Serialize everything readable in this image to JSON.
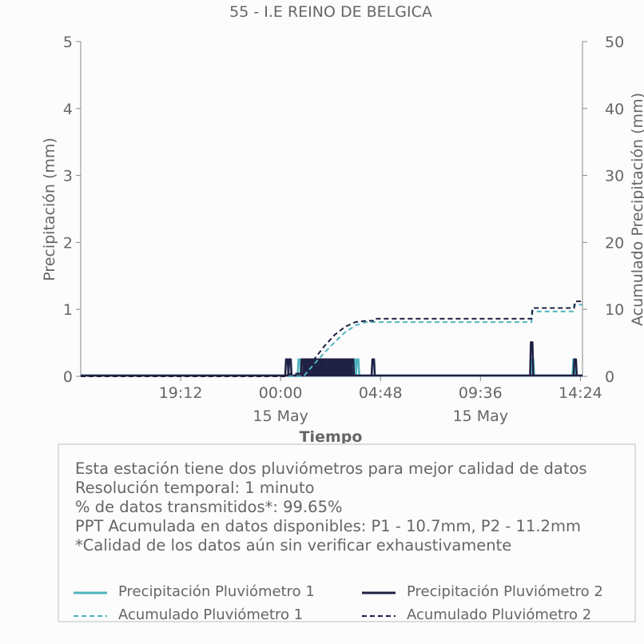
{
  "chart_data": {
    "type": "line",
    "title": "55 - I.E REINO DE BELGICA",
    "xlabel": "Tiempo",
    "ylabel_left": "Precipitación (mm)",
    "ylabel_right": "Acumulado Precipitación (mm)",
    "ylim_left": [
      0,
      5
    ],
    "ylim_right": [
      0,
      50
    ],
    "yticks_left": [
      "0",
      "1",
      "2",
      "3",
      "4",
      "5"
    ],
    "yticks_right": [
      "0",
      "10",
      "20",
      "30",
      "40",
      "50"
    ],
    "xlim_hours": [
      14.4,
      38.5
    ],
    "xticks": [
      {
        "hour": 19.2,
        "label": "19:12",
        "sub": ""
      },
      {
        "hour": 24.0,
        "label": "00:00",
        "sub": "15 May"
      },
      {
        "hour": 28.8,
        "label": "04:48",
        "sub": ""
      },
      {
        "hour": 33.6,
        "label": "09:36",
        "sub": "15 May"
      },
      {
        "hour": 38.4,
        "label": "14:24",
        "sub": ""
      }
    ],
    "grid": false,
    "series": [
      {
        "name": "Precipitación Pluviómetro 1",
        "color": "#4fb3bf",
        "style": "solid",
        "axis": "left",
        "events": [
          [
            24.45,
            0.254
          ],
          [
            24.9,
            0.254
          ],
          [
            25.2,
            0.254
          ],
          [
            25.5,
            0.254
          ],
          [
            25.8,
            0.254
          ],
          [
            26.1,
            0.254
          ],
          [
            26.4,
            0.254
          ],
          [
            26.7,
            0.254
          ],
          [
            27.0,
            0.254
          ],
          [
            27.3,
            0.254
          ],
          [
            27.55,
            0.254
          ],
          [
            27.7,
            0.254
          ],
          [
            28.45,
            0.254
          ],
          [
            36.1,
            0.254
          ],
          [
            38.1,
            0.254
          ]
        ]
      },
      {
        "name": "Precipitación Pluviómetro 2",
        "color": "#1f2044",
        "style": "solid",
        "axis": "left",
        "events": [
          [
            24.3,
            0.254
          ],
          [
            24.45,
            0.254
          ],
          [
            25.05,
            0.254
          ],
          [
            25.15,
            0.254
          ],
          [
            25.25,
            0.254
          ],
          [
            25.35,
            0.254
          ],
          [
            25.45,
            0.254
          ],
          [
            25.55,
            0.254
          ],
          [
            25.65,
            0.254
          ],
          [
            25.75,
            0.254
          ],
          [
            25.85,
            0.254
          ],
          [
            25.95,
            0.254
          ],
          [
            26.05,
            0.254
          ],
          [
            26.15,
            0.254
          ],
          [
            26.25,
            0.254
          ],
          [
            26.35,
            0.254
          ],
          [
            26.45,
            0.254
          ],
          [
            26.55,
            0.254
          ],
          [
            26.65,
            0.254
          ],
          [
            26.75,
            0.254
          ],
          [
            26.85,
            0.254
          ],
          [
            26.95,
            0.254
          ],
          [
            27.05,
            0.254
          ],
          [
            27.15,
            0.254
          ],
          [
            27.25,
            0.254
          ],
          [
            27.35,
            0.254
          ],
          [
            27.45,
            0.254
          ],
          [
            28.45,
            0.254
          ],
          [
            36.06,
            0.508
          ],
          [
            38.15,
            0.254
          ]
        ]
      },
      {
        "name": "Acumulado Pluviómetro 1",
        "color": "#4fb3bf",
        "style": "dashed",
        "axis": "right",
        "x": [
          14.4,
          25.1,
          25.6,
          26.1,
          26.6,
          27.1,
          27.6,
          28.1,
          28.5,
          36.05,
          36.1,
          38.05,
          38.1,
          38.5
        ],
        "values": [
          0,
          0,
          1.8,
          3.5,
          5.1,
          6.6,
          7.6,
          8.1,
          8.1,
          8.1,
          9.7,
          9.7,
          10.7,
          10.7
        ]
      },
      {
        "name": "Acumulado Pluviómetro 2",
        "color": "#1f2044",
        "style": "dashed",
        "axis": "right",
        "x": [
          14.4,
          24.3,
          24.35,
          25.1,
          25.6,
          26.1,
          26.6,
          27.1,
          27.6,
          28.1,
          28.45,
          28.5,
          36.05,
          36.1,
          38.1,
          38.15,
          38.5
        ],
        "values": [
          0,
          0,
          0.3,
          0.5,
          2.5,
          4.5,
          6.2,
          7.4,
          8.1,
          8.3,
          8.3,
          8.6,
          8.6,
          10.2,
          10.2,
          11.2,
          11.2
        ]
      }
    ],
    "legend": {
      "placement": "bottom",
      "entries": [
        {
          "label": "Precipitación Pluviómetro 1",
          "color": "#4fb3bf",
          "style": "solid"
        },
        {
          "label": "Precipitación Pluviómetro 2",
          "color": "#1f2044",
          "style": "solid"
        },
        {
          "label": "Acumulado Pluviómetro 1",
          "color": "#4fb3bf",
          "style": "dashed"
        },
        {
          "label": "Acumulado Pluviómetro 2",
          "color": "#1f2044",
          "style": "dashed"
        }
      ]
    }
  },
  "info": {
    "lines": [
      "Esta estación tiene dos pluviómetros para mejor calidad de datos",
      "Resolución temporal: 1 minuto",
      "% de datos transmitidos*: 99.65%",
      "PPT Acumulada en datos disponibles: P1 - 10.7mm, P2 - 11.2mm",
      "*Calidad de los datos aún sin verificar exhaustivamente"
    ]
  }
}
